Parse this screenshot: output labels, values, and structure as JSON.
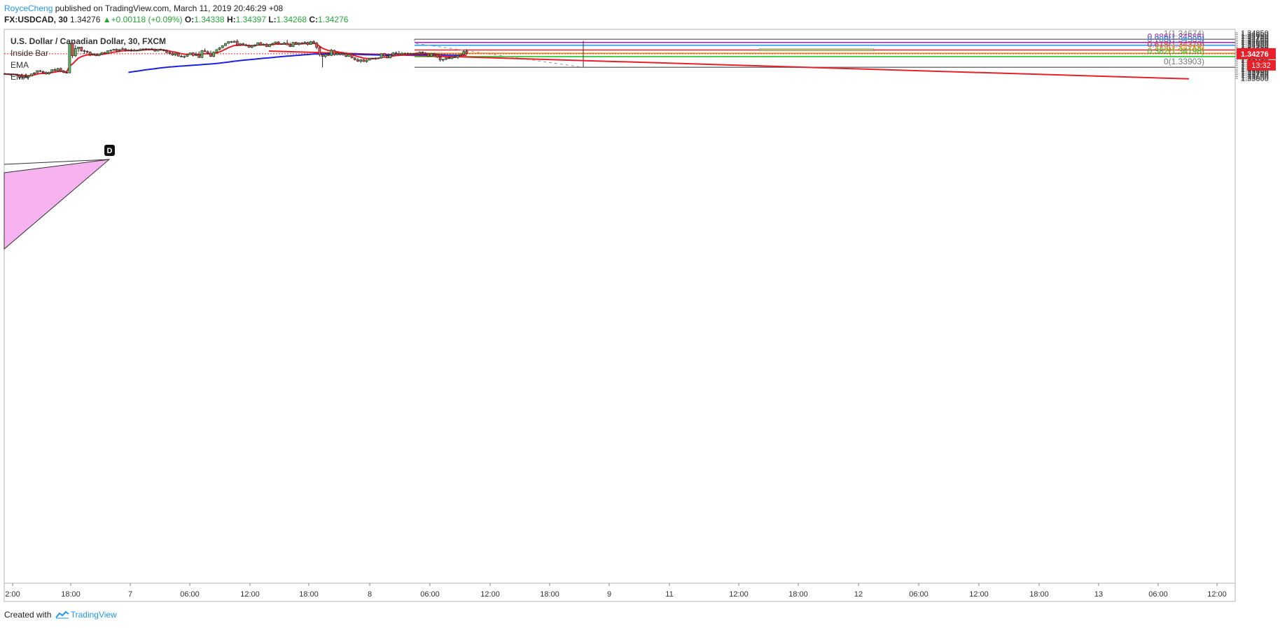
{
  "header": {
    "author": "RoyceCheng",
    "published": "published on TradingView.com, March 11, 2019 20:46:29 +08",
    "symbol": "FX:USDCAD, 30",
    "last": "1.34276",
    "change_arrow": "▲",
    "change": "+0.00118 (+0.09%)",
    "o_label": "O:",
    "o": "1.34338",
    "h_label": "H:",
    "h": "1.34397",
    "l_label": "L:",
    "l": "1.34268",
    "c_label": "C:",
    "c": "1.34276"
  },
  "legend": {
    "title": "U.S. Dollar / Canadian Dollar, 30, FXCM",
    "studies": [
      "Inside Bar",
      "EMA",
      "EMA"
    ]
  },
  "footer": {
    "created_with": "Created with",
    "brand": "TradingView"
  },
  "colors": {
    "up": "#5cb85c",
    "down": "#d9534f",
    "ema_fast": "#e8202a",
    "ema_slow": "#1a22e0",
    "trendline": "#e8202a",
    "fib_1": "#888888",
    "fib_0886": "#9c27b0",
    "fib_0786": "#2196f3",
    "fib_0618": "#e8202a",
    "fib_05": "#ff9800",
    "fib_0382": "#22c322",
    "fib_0": "#777777",
    "zone": "#fbf24a",
    "pattern": "#f7b3f0",
    "last_price_bg": "#e8202a",
    "countdown": "13:32"
  },
  "chart_data": {
    "type": "candlestick",
    "x_ticks": [
      "2:00",
      "18:00",
      "7",
      "06:00",
      "12:00",
      "18:00",
      "8",
      "06:00",
      "12:00",
      "18:00",
      "9",
      "11",
      "12:00",
      "18:00",
      "12",
      "06:00",
      "12:00",
      "18:00",
      "13",
      "06:00",
      "12:00"
    ],
    "y_ticks": [
      "1.34850",
      "1.34800",
      "1.34750",
      "1.34700",
      "1.34650",
      "1.34600",
      "1.34550",
      "1.34500",
      "1.34450",
      "1.34400",
      "1.34350",
      "1.34300",
      "1.34250",
      "1.34200",
      "1.34150",
      "1.34100",
      "1.34050",
      "1.34000",
      "1.33950",
      "1.33900",
      "1.33850",
      "1.33800",
      "1.33750",
      "1.33700",
      "1.33650",
      "1.33600"
    ],
    "ylim": [
      1.3357,
      1.34875
    ],
    "last_price": 1.34276,
    "last_price_label": "1.34276",
    "fib_levels": [
      {
        "ratio": 1,
        "price": 1.34674,
        "label": "1(1.34674)"
      },
      {
        "ratio": 0.886,
        "price": 1.34586,
        "label": "0.886(1.34586)"
      },
      {
        "ratio": 0.786,
        "price": 1.34509,
        "label": "0.786(1.34509)"
      },
      {
        "ratio": 0.618,
        "price": 1.34379,
        "label": "0.618(1.34379)"
      },
      {
        "ratio": 0.5,
        "price": 1.34289,
        "label": "0.5(1.34289)"
      },
      {
        "ratio": 0.382,
        "price": 1.34198,
        "label": "0.382(1.34198)"
      },
      {
        "ratio": 0,
        "price": 1.33903,
        "label": "0(1.33903)"
      }
    ],
    "pattern_label": "D",
    "candles": [
      {
        "o": 1.3373,
        "h": 1.3375,
        "l": 1.337,
        "c": 1.3372
      },
      {
        "o": 1.3372,
        "h": 1.3373,
        "l": 1.3369,
        "c": 1.337
      },
      {
        "o": 1.337,
        "h": 1.3372,
        "l": 1.3368,
        "c": 1.3371
      },
      {
        "o": 1.3371,
        "h": 1.3372,
        "l": 1.3369,
        "c": 1.337
      },
      {
        "o": 1.337,
        "h": 1.3371,
        "l": 1.3367,
        "c": 1.3368
      },
      {
        "o": 1.3368,
        "h": 1.337,
        "l": 1.336,
        "c": 1.3362
      },
      {
        "o": 1.3362,
        "h": 1.3366,
        "l": 1.3359,
        "c": 1.3365
      },
      {
        "o": 1.3365,
        "h": 1.3367,
        "l": 1.3361,
        "c": 1.3363
      },
      {
        "o": 1.3363,
        "h": 1.3368,
        "l": 1.3359,
        "c": 1.3366
      },
      {
        "o": 1.3366,
        "h": 1.3373,
        "l": 1.3365,
        "c": 1.3372
      },
      {
        "o": 1.3372,
        "h": 1.3377,
        "l": 1.337,
        "c": 1.3375
      },
      {
        "o": 1.3375,
        "h": 1.3382,
        "l": 1.3374,
        "c": 1.3381
      },
      {
        "o": 1.3381,
        "h": 1.3383,
        "l": 1.3377,
        "c": 1.3379
      },
      {
        "o": 1.3379,
        "h": 1.3381,
        "l": 1.3373,
        "c": 1.3376
      },
      {
        "o": 1.3376,
        "h": 1.3379,
        "l": 1.337,
        "c": 1.3372
      },
      {
        "o": 1.3372,
        "h": 1.3378,
        "l": 1.337,
        "c": 1.3377
      },
      {
        "o": 1.3377,
        "h": 1.3385,
        "l": 1.3376,
        "c": 1.3384
      },
      {
        "o": 1.3384,
        "h": 1.3388,
        "l": 1.3379,
        "c": 1.3381
      },
      {
        "o": 1.3381,
        "h": 1.3389,
        "l": 1.3379,
        "c": 1.3387
      },
      {
        "o": 1.3387,
        "h": 1.339,
        "l": 1.3378,
        "c": 1.338
      },
      {
        "o": 1.338,
        "h": 1.3383,
        "l": 1.3374,
        "c": 1.3376
      },
      {
        "o": 1.3376,
        "h": 1.3379,
        "l": 1.3374,
        "c": 1.3375
      },
      {
        "o": 1.3375,
        "h": 1.3458,
        "l": 1.3374,
        "c": 1.3457
      },
      {
        "o": 1.3457,
        "h": 1.3458,
        "l": 1.3416,
        "c": 1.3422
      },
      {
        "o": 1.3422,
        "h": 1.3451,
        "l": 1.3419,
        "c": 1.3442
      },
      {
        "o": 1.3442,
        "h": 1.3447,
        "l": 1.3432,
        "c": 1.3446
      },
      {
        "o": 1.3446,
        "h": 1.3447,
        "l": 1.3433,
        "c": 1.3436
      },
      {
        "o": 1.3436,
        "h": 1.3439,
        "l": 1.3427,
        "c": 1.3434
      },
      {
        "o": 1.3434,
        "h": 1.3437,
        "l": 1.3428,
        "c": 1.3432
      },
      {
        "o": 1.3432,
        "h": 1.3434,
        "l": 1.3421,
        "c": 1.3425
      },
      {
        "o": 1.3425,
        "h": 1.3429,
        "l": 1.3423,
        "c": 1.3427
      },
      {
        "o": 1.3427,
        "h": 1.3428,
        "l": 1.3421,
        "c": 1.3422
      },
      {
        "o": 1.3422,
        "h": 1.3428,
        "l": 1.3421,
        "c": 1.3427
      },
      {
        "o": 1.3427,
        "h": 1.3432,
        "l": 1.3425,
        "c": 1.3431
      },
      {
        "o": 1.3431,
        "h": 1.3433,
        "l": 1.3428,
        "c": 1.3429
      },
      {
        "o": 1.3429,
        "h": 1.3437,
        "l": 1.3428,
        "c": 1.3436
      },
      {
        "o": 1.3436,
        "h": 1.3439,
        "l": 1.3433,
        "c": 1.3437
      },
      {
        "o": 1.3437,
        "h": 1.3441,
        "l": 1.3436,
        "c": 1.344
      },
      {
        "o": 1.344,
        "h": 1.3442,
        "l": 1.3434,
        "c": 1.3436
      },
      {
        "o": 1.3436,
        "h": 1.3441,
        "l": 1.3434,
        "c": 1.3439
      },
      {
        "o": 1.3439,
        "h": 1.3446,
        "l": 1.3438,
        "c": 1.3441
      },
      {
        "o": 1.3441,
        "h": 1.3443,
        "l": 1.3434,
        "c": 1.3437
      },
      {
        "o": 1.3437,
        "h": 1.344,
        "l": 1.3436,
        "c": 1.3438
      },
      {
        "o": 1.3438,
        "h": 1.3442,
        "l": 1.3433,
        "c": 1.3436
      },
      {
        "o": 1.3436,
        "h": 1.3441,
        "l": 1.3434,
        "c": 1.3437
      },
      {
        "o": 1.3437,
        "h": 1.3439,
        "l": 1.3435,
        "c": 1.3436
      },
      {
        "o": 1.3436,
        "h": 1.3442,
        "l": 1.3435,
        "c": 1.344
      },
      {
        "o": 1.344,
        "h": 1.3442,
        "l": 1.3436,
        "c": 1.3441
      },
      {
        "o": 1.3441,
        "h": 1.3443,
        "l": 1.3437,
        "c": 1.344
      },
      {
        "o": 1.344,
        "h": 1.3442,
        "l": 1.3437,
        "c": 1.3441
      },
      {
        "o": 1.3441,
        "h": 1.3444,
        "l": 1.3438,
        "c": 1.344
      },
      {
        "o": 1.344,
        "h": 1.3442,
        "l": 1.3433,
        "c": 1.3435
      },
      {
        "o": 1.3435,
        "h": 1.3441,
        "l": 1.3434,
        "c": 1.344
      },
      {
        "o": 1.344,
        "h": 1.3442,
        "l": 1.3436,
        "c": 1.3438
      },
      {
        "o": 1.3438,
        "h": 1.3441,
        "l": 1.3434,
        "c": 1.3436
      },
      {
        "o": 1.3436,
        "h": 1.3439,
        "l": 1.3429,
        "c": 1.3431
      },
      {
        "o": 1.3431,
        "h": 1.3435,
        "l": 1.3425,
        "c": 1.3429
      },
      {
        "o": 1.3429,
        "h": 1.3432,
        "l": 1.3422,
        "c": 1.3424
      },
      {
        "o": 1.3424,
        "h": 1.343,
        "l": 1.3421,
        "c": 1.3429
      },
      {
        "o": 1.3429,
        "h": 1.3431,
        "l": 1.342,
        "c": 1.3421
      },
      {
        "o": 1.3421,
        "h": 1.3425,
        "l": 1.3418,
        "c": 1.342
      },
      {
        "o": 1.342,
        "h": 1.3423,
        "l": 1.3415,
        "c": 1.342
      },
      {
        "o": 1.342,
        "h": 1.3426,
        "l": 1.3419,
        "c": 1.3425
      },
      {
        "o": 1.3425,
        "h": 1.3431,
        "l": 1.3424,
        "c": 1.343
      },
      {
        "o": 1.343,
        "h": 1.3432,
        "l": 1.342,
        "c": 1.3423
      },
      {
        "o": 1.3423,
        "h": 1.3432,
        "l": 1.3421,
        "c": 1.3425
      },
      {
        "o": 1.3425,
        "h": 1.3434,
        "l": 1.3417,
        "c": 1.3417
      },
      {
        "o": 1.3417,
        "h": 1.3438,
        "l": 1.3416,
        "c": 1.3436
      },
      {
        "o": 1.3436,
        "h": 1.3442,
        "l": 1.3433,
        "c": 1.3433
      },
      {
        "o": 1.3433,
        "h": 1.3437,
        "l": 1.3426,
        "c": 1.3429
      },
      {
        "o": 1.3429,
        "h": 1.3436,
        "l": 1.3419,
        "c": 1.342
      },
      {
        "o": 1.342,
        "h": 1.3434,
        "l": 1.3418,
        "c": 1.3432
      },
      {
        "o": 1.3432,
        "h": 1.344,
        "l": 1.343,
        "c": 1.3439
      },
      {
        "o": 1.3439,
        "h": 1.3446,
        "l": 1.3437,
        "c": 1.3444
      },
      {
        "o": 1.3444,
        "h": 1.3451,
        "l": 1.3443,
        "c": 1.345
      },
      {
        "o": 1.345,
        "h": 1.3457,
        "l": 1.3449,
        "c": 1.3456
      },
      {
        "o": 1.3456,
        "h": 1.3462,
        "l": 1.3455,
        "c": 1.3461
      },
      {
        "o": 1.3461,
        "h": 1.3463,
        "l": 1.3457,
        "c": 1.3459
      },
      {
        "o": 1.3459,
        "h": 1.3464,
        "l": 1.3458,
        "c": 1.3462
      },
      {
        "o": 1.3462,
        "h": 1.3467,
        "l": 1.345,
        "c": 1.3452
      },
      {
        "o": 1.3452,
        "h": 1.3457,
        "l": 1.3449,
        "c": 1.3455
      },
      {
        "o": 1.3455,
        "h": 1.3458,
        "l": 1.3451,
        "c": 1.3452
      },
      {
        "o": 1.3452,
        "h": 1.3455,
        "l": 1.3448,
        "c": 1.345
      },
      {
        "o": 1.345,
        "h": 1.3453,
        "l": 1.3444,
        "c": 1.3445
      },
      {
        "o": 1.3445,
        "h": 1.3452,
        "l": 1.3443,
        "c": 1.345
      },
      {
        "o": 1.345,
        "h": 1.3454,
        "l": 1.3446,
        "c": 1.3451
      },
      {
        "o": 1.3451,
        "h": 1.3459,
        "l": 1.345,
        "c": 1.3458
      },
      {
        "o": 1.3458,
        "h": 1.346,
        "l": 1.345,
        "c": 1.3452
      },
      {
        "o": 1.3452,
        "h": 1.3456,
        "l": 1.345,
        "c": 1.3454
      },
      {
        "o": 1.3454,
        "h": 1.3457,
        "l": 1.3446,
        "c": 1.3447
      },
      {
        "o": 1.3447,
        "h": 1.3455,
        "l": 1.3446,
        "c": 1.3453
      },
      {
        "o": 1.3453,
        "h": 1.3458,
        "l": 1.3452,
        "c": 1.3456
      },
      {
        "o": 1.3456,
        "h": 1.3461,
        "l": 1.3455,
        "c": 1.346
      },
      {
        "o": 1.346,
        "h": 1.3462,
        "l": 1.3453,
        "c": 1.3455
      },
      {
        "o": 1.3455,
        "h": 1.3457,
        "l": 1.3453,
        "c": 1.3454
      },
      {
        "o": 1.3454,
        "h": 1.3461,
        "l": 1.3452,
        "c": 1.3457
      },
      {
        "o": 1.3457,
        "h": 1.3466,
        "l": 1.3451,
        "c": 1.3452
      },
      {
        "o": 1.3452,
        "h": 1.3458,
        "l": 1.3446,
        "c": 1.3447
      },
      {
        "o": 1.3447,
        "h": 1.346,
        "l": 1.3446,
        "c": 1.3459
      },
      {
        "o": 1.3459,
        "h": 1.3461,
        "l": 1.3452,
        "c": 1.3454
      },
      {
        "o": 1.3454,
        "h": 1.3459,
        "l": 1.345,
        "c": 1.3457
      },
      {
        "o": 1.3457,
        "h": 1.346,
        "l": 1.3455,
        "c": 1.3456
      },
      {
        "o": 1.3456,
        "h": 1.3462,
        "l": 1.3454,
        "c": 1.3459
      },
      {
        "o": 1.3459,
        "h": 1.3461,
        "l": 1.345,
        "c": 1.3453
      },
      {
        "o": 1.3453,
        "h": 1.3463,
        "l": 1.3452,
        "c": 1.3461
      },
      {
        "o": 1.3461,
        "h": 1.3465,
        "l": 1.3455,
        "c": 1.3457
      },
      {
        "o": 1.3457,
        "h": 1.346,
        "l": 1.344,
        "c": 1.3445
      },
      {
        "o": 1.3445,
        "h": 1.3447,
        "l": 1.342,
        "c": 1.3425
      },
      {
        "o": 1.3425,
        "h": 1.3428,
        "l": 1.339,
        "c": 1.342
      },
      {
        "o": 1.342,
        "h": 1.343,
        "l": 1.3416,
        "c": 1.3426
      },
      {
        "o": 1.3426,
        "h": 1.3432,
        "l": 1.3421,
        "c": 1.3423
      },
      {
        "o": 1.3423,
        "h": 1.3441,
        "l": 1.3421,
        "c": 1.3437
      },
      {
        "o": 1.3437,
        "h": 1.3439,
        "l": 1.3422,
        "c": 1.3425
      },
      {
        "o": 1.3425,
        "h": 1.3431,
        "l": 1.3423,
        "c": 1.3429
      },
      {
        "o": 1.3429,
        "h": 1.343,
        "l": 1.3423,
        "c": 1.3425
      },
      {
        "o": 1.3425,
        "h": 1.343,
        "l": 1.3422,
        "c": 1.3428
      },
      {
        "o": 1.3428,
        "h": 1.3429,
        "l": 1.3418,
        "c": 1.342
      },
      {
        "o": 1.342,
        "h": 1.3428,
        "l": 1.3419,
        "c": 1.3426
      },
      {
        "o": 1.3426,
        "h": 1.3428,
        "l": 1.3415,
        "c": 1.3416
      },
      {
        "o": 1.3416,
        "h": 1.3419,
        "l": 1.3409,
        "c": 1.3411
      },
      {
        "o": 1.3411,
        "h": 1.3416,
        "l": 1.3405,
        "c": 1.3407
      },
      {
        "o": 1.3407,
        "h": 1.3413,
        "l": 1.3402,
        "c": 1.3411
      },
      {
        "o": 1.3411,
        "h": 1.3413,
        "l": 1.3405,
        "c": 1.3406
      },
      {
        "o": 1.3406,
        "h": 1.3412,
        "l": 1.3403,
        "c": 1.341
      },
      {
        "o": 1.341,
        "h": 1.3416,
        "l": 1.3409,
        "c": 1.3415
      },
      {
        "o": 1.3415,
        "h": 1.3417,
        "l": 1.3412,
        "c": 1.3414
      },
      {
        "o": 1.3414,
        "h": 1.3418,
        "l": 1.3411,
        "c": 1.3415
      },
      {
        "o": 1.3415,
        "h": 1.3417,
        "l": 1.3413,
        "c": 1.3416
      },
      {
        "o": 1.3416,
        "h": 1.3429,
        "l": 1.3414,
        "c": 1.3428
      },
      {
        "o": 1.3428,
        "h": 1.343,
        "l": 1.342,
        "c": 1.3422
      },
      {
        "o": 1.3422,
        "h": 1.3424,
        "l": 1.3415,
        "c": 1.3416
      },
      {
        "o": 1.3416,
        "h": 1.3425,
        "l": 1.3415,
        "c": 1.3424
      },
      {
        "o": 1.3424,
        "h": 1.3432,
        "l": 1.3423,
        "c": 1.343
      },
      {
        "o": 1.343,
        "h": 1.3434,
        "l": 1.3426,
        "c": 1.3428
      },
      {
        "o": 1.3428,
        "h": 1.3435,
        "l": 1.3424,
        "c": 1.3425
      },
      {
        "o": 1.3425,
        "h": 1.3432,
        "l": 1.3423,
        "c": 1.3429
      },
      {
        "o": 1.3429,
        "h": 1.3431,
        "l": 1.3426,
        "c": 1.3428
      },
      {
        "o": 1.3428,
        "h": 1.3431,
        "l": 1.3426,
        "c": 1.3429
      },
      {
        "o": 1.3429,
        "h": 1.343,
        "l": 1.3426,
        "c": 1.3427
      },
      {
        "o": 1.3427,
        "h": 1.343,
        "l": 1.3425,
        "c": 1.3429
      },
      {
        "o": 1.3429,
        "h": 1.3432,
        "l": 1.3427,
        "c": 1.3428
      },
      {
        "o": 1.3428,
        "h": 1.3434,
        "l": 1.3426,
        "c": 1.3432
      },
      {
        "o": 1.3432,
        "h": 1.3434,
        "l": 1.3428,
        "c": 1.343
      },
      {
        "o": 1.343,
        "h": 1.3432,
        "l": 1.3425,
        "c": 1.3427
      },
      {
        "o": 1.3427,
        "h": 1.343,
        "l": 1.3419,
        "c": 1.3421
      },
      {
        "o": 1.3421,
        "h": 1.343,
        "l": 1.342,
        "c": 1.3428
      },
      {
        "o": 1.3428,
        "h": 1.343,
        "l": 1.3423,
        "c": 1.3425
      },
      {
        "o": 1.3425,
        "h": 1.3428,
        "l": 1.3416,
        "c": 1.3418
      },
      {
        "o": 1.3418,
        "h": 1.3421,
        "l": 1.3406,
        "c": 1.3411
      },
      {
        "o": 1.3411,
        "h": 1.3414,
        "l": 1.3406,
        "c": 1.3412
      },
      {
        "o": 1.3412,
        "h": 1.3417,
        "l": 1.341,
        "c": 1.3416
      },
      {
        "o": 1.3416,
        "h": 1.3419,
        "l": 1.3413,
        "c": 1.3414
      },
      {
        "o": 1.3414,
        "h": 1.342,
        "l": 1.3413,
        "c": 1.3419
      },
      {
        "o": 1.3419,
        "h": 1.3423,
        "l": 1.3416,
        "c": 1.3418
      },
      {
        "o": 1.3418,
        "h": 1.3425,
        "l": 1.3414,
        "c": 1.3423
      },
      {
        "o": 1.3423,
        "h": 1.3427,
        "l": 1.3421,
        "c": 1.3426
      },
      {
        "o": 1.3426,
        "h": 1.3437,
        "l": 1.3425,
        "c": 1.3434
      },
      {
        "o": 1.3434,
        "h": 1.344,
        "l": 1.3426,
        "c": 1.3428
      }
    ]
  }
}
